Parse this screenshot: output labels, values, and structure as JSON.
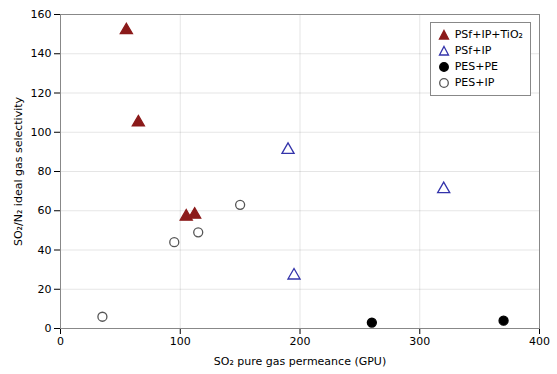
{
  "chart_data": {
    "type": "scatter",
    "xlabel": "SO₂ pure gas permeance (GPU)",
    "ylabel": "SO₂/N₂ ideal gas selectivity",
    "xlim": [
      0,
      400
    ],
    "ylim": [
      0,
      160
    ],
    "xticks": [
      0,
      100,
      200,
      300,
      400
    ],
    "yticks": [
      0,
      20,
      40,
      60,
      80,
      100,
      120,
      140,
      160
    ],
    "grid": true,
    "legend": "upper right",
    "series": [
      {
        "name": "PSf+IP+TiO₂",
        "color": "#8B1A1A",
        "marker": "triangle",
        "x": [
          55,
          65,
          105,
          112
        ],
        "values": [
          152,
          105,
          57,
          58
        ]
      },
      {
        "name": "PSf+IP",
        "color": "#3333AA",
        "marker": "triangle_open",
        "x": [
          190,
          195,
          320
        ],
        "values": [
          91,
          27,
          71
        ]
      },
      {
        "name": "PES+PE",
        "color": "black",
        "marker": "circle",
        "x": [
          260,
          370
        ],
        "values": [
          3,
          4
        ]
      },
      {
        "name": "PES+IP",
        "color": "#555555",
        "marker": "circle_open",
        "x": [
          35,
          95,
          115,
          150
        ],
        "values": [
          6,
          44,
          49,
          63
        ]
      }
    ]
  }
}
